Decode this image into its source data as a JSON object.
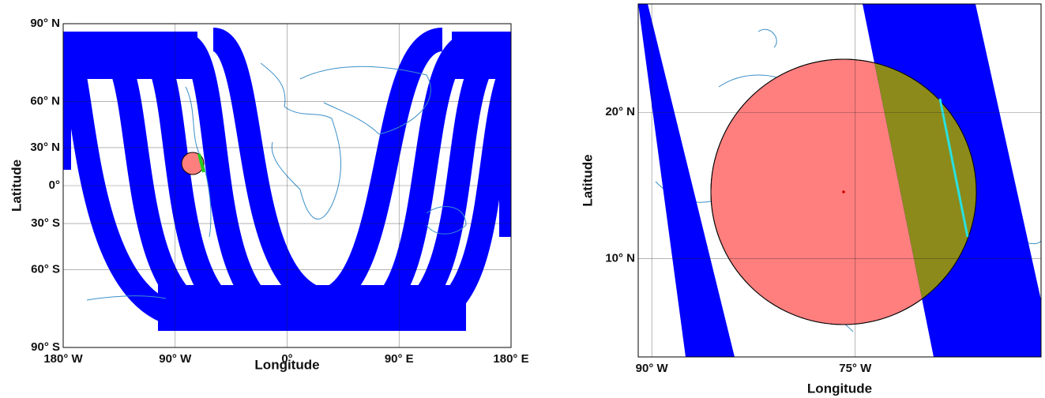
{
  "left_map": {
    "xlabel": "Longitude",
    "ylabel": "Latitude",
    "xlim": [
      -180,
      180
    ],
    "ylim": [
      -90,
      90
    ],
    "xticks": [
      {
        "value": -180,
        "label": "180° W"
      },
      {
        "value": -90,
        "label": "90° W"
      },
      {
        "value": 0,
        "label": "0°"
      },
      {
        "value": 90,
        "label": "90° E"
      },
      {
        "value": 180,
        "label": "180° E"
      }
    ],
    "yticks": [
      {
        "value": 90,
        "label": "90° N"
      },
      {
        "value": 60,
        "label": "60° N"
      },
      {
        "value": 30,
        "label": "30° N"
      },
      {
        "value": 0,
        "label": "0°"
      },
      {
        "value": -30,
        "label": "30° S"
      },
      {
        "value": -60,
        "label": "60° S"
      },
      {
        "value": -90,
        "label": "90° S"
      }
    ]
  },
  "right_map": {
    "xlabel": "Longitude",
    "ylabel": "Latitude",
    "xlim": [
      -91,
      -61.3
    ],
    "ylim": [
      3.3,
      27.4
    ],
    "xticks": [
      {
        "value": -90,
        "label": "90° W"
      },
      {
        "value": -75,
        "label": "75° W"
      }
    ],
    "yticks": [
      {
        "value": 20,
        "label": "20° N"
      },
      {
        "value": 10,
        "label": "10° N"
      }
    ]
  }
}
